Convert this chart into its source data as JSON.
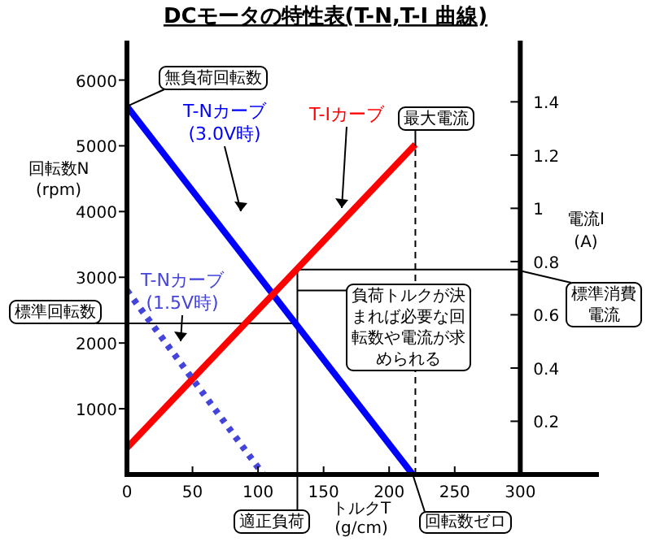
{
  "chart_data": {
    "type": "line",
    "title": "DCモータの特性表(T-N,T-I 曲線)",
    "xlabel": "トルクT\n(g/cm)",
    "ylabel": "回転数N\n(rpm)",
    "y2label": "電流I\n(A)",
    "xlim": [
      0,
      360
    ],
    "xticks": [
      0,
      50,
      100,
      150,
      200,
      250,
      300
    ],
    "ylim": [
      0,
      6600
    ],
    "yticks": [
      1000,
      2000,
      3000,
      4000,
      5000,
      6000
    ],
    "y2lim": [
      0,
      1.63
    ],
    "y2ticks": [
      0.2,
      0.4,
      0.6,
      0.8,
      1.0,
      1.2,
      1.4
    ],
    "series": [
      {
        "name": "T-Nカーブ\n(3.0V時)",
        "color": "#0000ff",
        "x": [
          0,
          218
        ],
        "values": [
          5600,
          0
        ],
        "line_style": "solid"
      },
      {
        "name": "T-Iカーブ",
        "color": "#ff0000",
        "x": [
          0,
          220
        ],
        "values": [
          0.1,
          1.24
        ],
        "axis": "y2",
        "line_style": "solid"
      },
      {
        "name": "T-Nカーブ\n(1.5V時)",
        "color": "#4444dd",
        "x": [
          0,
          104
        ],
        "values": [
          2800,
          0
        ],
        "line_style": "dotted"
      }
    ],
    "ref_lines": [
      {
        "axis": "x",
        "value": 130,
        "color": "#000000",
        "line_style": "solid"
      },
      {
        "axis": "y",
        "value": 2300,
        "color": "#000000",
        "line_style": "solid"
      },
      {
        "axis": "y2",
        "value": 0.77,
        "color": "#000000",
        "line_style": "solid"
      },
      {
        "axis": "x",
        "value": 220,
        "color": "#000000",
        "line_style": "dashed"
      }
    ],
    "annotations": [
      {
        "text": "無負荷回転数",
        "x": 0,
        "y": 5600
      },
      {
        "text": "最大電流",
        "x": 220,
        "y": 5000
      },
      {
        "text": "標準回転数",
        "x": 0,
        "y": 2300
      },
      {
        "text": "負荷トルクが決まれば必要な回転数や電流が求められる",
        "x": 130,
        "y": 2800
      },
      {
        "text": "標準消費電流",
        "x": 300,
        "y": 3100
      },
      {
        "text": "適正負荷",
        "x": 130,
        "y": 0
      },
      {
        "text": "回転数ゼロ",
        "x": 218,
        "y": 0
      }
    ]
  }
}
